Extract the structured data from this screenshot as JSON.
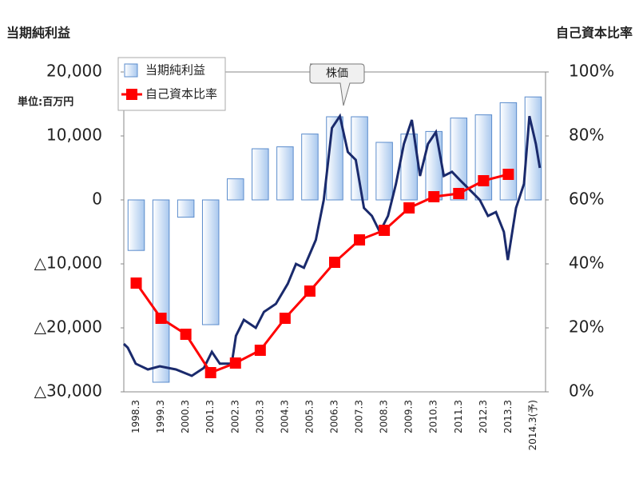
{
  "chart_data": {
    "type": "bar_line",
    "y_label": "当期純利益",
    "y2_label": "自己資本比率",
    "unit_note": "単位:百万円",
    "annotation": "株価",
    "categories": [
      "1998.3",
      "1999.3",
      "2000.3",
      "2001.3",
      "2002.3",
      "2003.3",
      "2004.3",
      "2005.3",
      "2006.3",
      "2007.3",
      "2008.3",
      "2009.3",
      "2010.3",
      "2011.3",
      "2012.3",
      "2013.3",
      "2014.3(予)"
    ],
    "series": [
      {
        "name": "当期純利益",
        "type": "bar",
        "color": "#a9c8ee",
        "values": [
          -7900,
          -28500,
          -2700,
          -19500,
          3300,
          8000,
          8300,
          10300,
          13000,
          13000,
          9000,
          10300,
          10700,
          12800,
          13300,
          15200,
          16100
        ]
      },
      {
        "name": "自己資本比率",
        "type": "line",
        "axis": "y2",
        "color": "#ff0000",
        "values": [
          34,
          23,
          18,
          6,
          9,
          13,
          23,
          31.5,
          40.5,
          47.5,
          50.5,
          57.5,
          61,
          62,
          66,
          68,
          null
        ]
      }
    ],
    "stock_price": {
      "color": "#1a2a6c",
      "xlim": [
        1997.75,
        2014.75
      ],
      "x": [
        1997.75,
        1997.91,
        1998.23,
        1998.72,
        1999.2,
        1999.85,
        2000.49,
        2000.98,
        2001.3,
        2001.62,
        2002.1,
        2002.27,
        2002.59,
        2003.07,
        2003.4,
        2003.88,
        2004.36,
        2004.69,
        2005.01,
        2005.49,
        2005.81,
        2006.14,
        2006.46,
        2006.78,
        2007.1,
        2007.43,
        2007.75,
        2008.07,
        2008.4,
        2008.72,
        2009.04,
        2009.36,
        2009.69,
        2010.01,
        2010.33,
        2010.65,
        2010.98,
        2011.3,
        2011.78,
        2012.1,
        2012.43,
        2012.75,
        2013.07,
        2013.23,
        2013.56,
        2013.88,
        2014.1,
        2014.36,
        2014.52
      ],
      "values": [
        -22500,
        -23100,
        -25600,
        -26500,
        -26000,
        -26500,
        -27500,
        -26250,
        -23750,
        -25600,
        -25600,
        -21250,
        -18750,
        -20000,
        -17500,
        -16250,
        -13100,
        -10000,
        -10600,
        -6250,
        0,
        11250,
        13100,
        7500,
        6250,
        -1250,
        -2500,
        -5000,
        -2500,
        2500,
        8750,
        12500,
        3750,
        8750,
        10600,
        3750,
        4400,
        3100,
        1250,
        0,
        -2500,
        -1900,
        -5000,
        -9400,
        -1250,
        2500,
        13100,
        8750,
        5000
      ]
    },
    "ylim": [
      -30000,
      20000
    ],
    "yticks": [
      {
        "value": 20000,
        "label": "20,000"
      },
      {
        "value": 10000,
        "label": "10,000"
      },
      0,
      {
        "value": -10000,
        "label": "△10,000"
      },
      {
        "value": -20000,
        "label": "△20,000"
      },
      {
        "value": -30000,
        "label": "△30,000"
      }
    ],
    "y2lim": [
      0,
      100
    ],
    "y2ticks": [
      {
        "value": 0,
        "label": "0%"
      },
      {
        "value": 20,
        "label": "20%"
      },
      {
        "value": 40,
        "label": "40%"
      },
      {
        "value": 60,
        "label": "60%"
      },
      {
        "value": 80,
        "label": "80%"
      },
      {
        "value": 100,
        "label": "100%"
      }
    ],
    "legend": "upper left"
  }
}
